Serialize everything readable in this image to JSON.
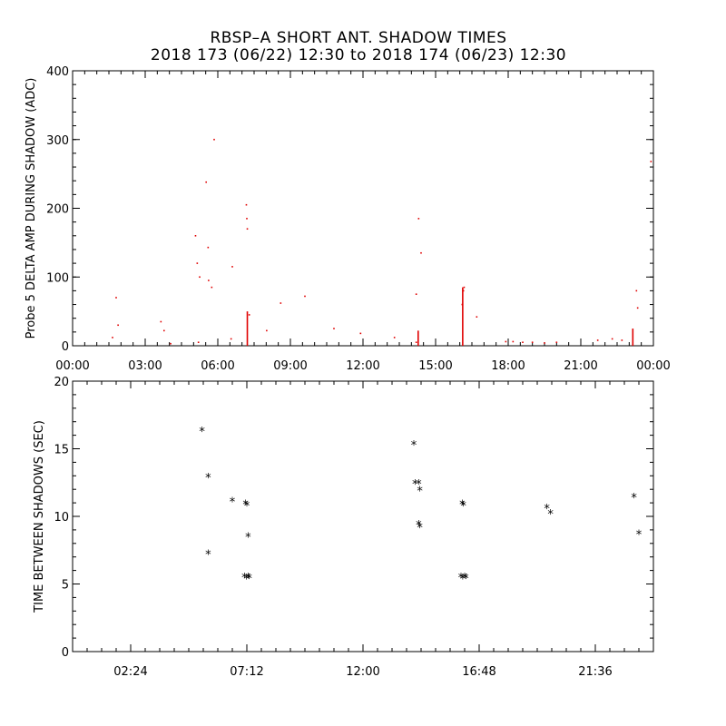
{
  "title_line1": "RBSP–A SHORT ANT. SHADOW TIMES",
  "title_line2": "2018 173 (06/22) 12:30 to 2018 174 (06/23) 12:30",
  "colors": {
    "top_marks": "#e00000",
    "bottom_marks": "#000000",
    "axes": "#000000",
    "background": "#ffffff"
  },
  "chart_data": [
    {
      "type": "scatter",
      "ylabel": "Probe 5 DELTA AMP DURING SHADOW (ADC)",
      "xlabel": "",
      "x_unit": "hours",
      "xlim": [
        0,
        24
      ],
      "ylim": [
        0,
        400
      ],
      "xticks": [
        {
          "value": 0,
          "label": "00:00"
        },
        {
          "value": 3,
          "label": "03:00"
        },
        {
          "value": 6,
          "label": "06:00"
        },
        {
          "value": 9,
          "label": "09:00"
        },
        {
          "value": 12,
          "label": "12:00"
        },
        {
          "value": 15,
          "label": "15:00"
        },
        {
          "value": 18,
          "label": "18:00"
        },
        {
          "value": 21,
          "label": "21:00"
        },
        {
          "value": 24,
          "label": "00:00"
        }
      ],
      "yticks": [
        {
          "value": 0,
          "label": "0"
        },
        {
          "value": 100,
          "label": "100"
        },
        {
          "value": 200,
          "label": "200"
        },
        {
          "value": 300,
          "label": "300"
        },
        {
          "value": 400,
          "label": "400"
        }
      ],
      "points": [
        [
          1.65,
          12
        ],
        [
          1.8,
          70
        ],
        [
          1.88,
          30
        ],
        [
          3.65,
          35
        ],
        [
          3.78,
          22
        ],
        [
          4.05,
          3
        ],
        [
          5.08,
          160
        ],
        [
          5.15,
          120
        ],
        [
          5.25,
          100
        ],
        [
          5.2,
          5
        ],
        [
          5.52,
          238
        ],
        [
          5.6,
          143
        ],
        [
          5.62,
          95
        ],
        [
          5.75,
          85
        ],
        [
          5.85,
          300
        ],
        [
          6.6,
          115
        ],
        [
          6.55,
          10
        ],
        [
          7.18,
          205
        ],
        [
          7.2,
          185
        ],
        [
          7.22,
          170
        ],
        [
          7.3,
          45
        ],
        [
          8.02,
          22
        ],
        [
          8.6,
          62
        ],
        [
          9.6,
          72
        ],
        [
          10.8,
          25
        ],
        [
          11.9,
          18
        ],
        [
          13.3,
          12
        ],
        [
          14.2,
          75
        ],
        [
          14.3,
          185
        ],
        [
          14.4,
          135
        ],
        [
          14.2,
          5
        ],
        [
          16.1,
          60
        ],
        [
          16.15,
          80
        ],
        [
          16.18,
          85
        ],
        [
          16.7,
          42
        ],
        [
          17.9,
          6
        ],
        [
          18.2,
          6
        ],
        [
          18.6,
          5
        ],
        [
          19.0,
          5
        ],
        [
          19.5,
          4
        ],
        [
          20.0,
          5
        ],
        [
          21.7,
          8
        ],
        [
          22.3,
          10
        ],
        [
          22.7,
          8
        ],
        [
          23.3,
          80
        ],
        [
          23.35,
          55
        ],
        [
          23.9,
          268
        ]
      ],
      "vertical_clusters": [
        {
          "x": 7.22,
          "y_from": 0,
          "y_to": 50
        },
        {
          "x": 14.28,
          "y_from": 0,
          "y_to": 22
        },
        {
          "x": 16.12,
          "y_from": 0,
          "y_to": 85
        },
        {
          "x": 23.15,
          "y_from": 0,
          "y_to": 25
        }
      ]
    },
    {
      "type": "scatter",
      "ylabel": "TIME BETWEEN SHADOWS (SEC)",
      "xlabel": "",
      "x_unit": "hours",
      "xlim": [
        0,
        24
      ],
      "ylim": [
        0,
        20
      ],
      "xticks": [
        {
          "value": 2.4,
          "label": "02:24"
        },
        {
          "value": 7.2,
          "label": "07:12"
        },
        {
          "value": 12.0,
          "label": "12:00"
        },
        {
          "value": 16.8,
          "label": "16:48"
        },
        {
          "value": 21.6,
          "label": "21:36"
        }
      ],
      "minor_xticks": [
        0.6,
        1.2,
        1.8,
        3.0,
        3.6,
        4.2,
        4.8,
        5.4,
        6.0,
        6.6,
        7.8,
        8.4,
        9.0,
        9.6,
        10.2,
        10.8,
        11.4,
        12.6,
        13.2,
        13.8,
        14.4,
        15.0,
        15.6,
        16.2,
        17.4,
        18.0,
        18.6,
        19.2,
        19.8,
        20.4,
        21.0,
        22.2,
        22.8,
        23.4
      ],
      "yticks": [
        {
          "value": 0,
          "label": "0"
        },
        {
          "value": 5,
          "label": "5"
        },
        {
          "value": 10,
          "label": "10"
        },
        {
          "value": 15,
          "label": "15"
        },
        {
          "value": 20,
          "label": "20"
        }
      ],
      "points": [
        [
          5.35,
          16.3
        ],
        [
          5.6,
          12.9
        ],
        [
          5.6,
          7.2
        ],
        [
          6.6,
          11.1
        ],
        [
          7.15,
          10.9
        ],
        [
          7.2,
          10.8
        ],
        [
          7.25,
          8.5
        ],
        [
          7.1,
          5.5
        ],
        [
          7.18,
          5.4
        ],
        [
          7.25,
          5.5
        ],
        [
          7.3,
          5.45
        ],
        [
          14.1,
          15.3
        ],
        [
          14.15,
          12.4
        ],
        [
          14.3,
          12.4
        ],
        [
          14.35,
          11.9
        ],
        [
          14.3,
          9.4
        ],
        [
          14.35,
          9.2
        ],
        [
          16.1,
          10.9
        ],
        [
          16.15,
          10.8
        ],
        [
          16.05,
          5.5
        ],
        [
          16.12,
          5.4
        ],
        [
          16.2,
          5.5
        ],
        [
          16.25,
          5.45
        ],
        [
          19.6,
          10.6
        ],
        [
          19.75,
          10.2
        ],
        [
          23.2,
          11.4
        ],
        [
          23.4,
          8.7
        ]
      ]
    }
  ]
}
